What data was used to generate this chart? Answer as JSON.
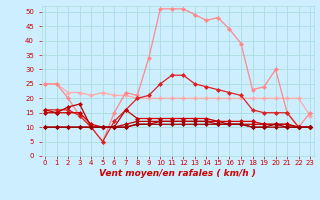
{
  "background_color": "#cceeff",
  "grid_color": "#aadddd",
  "xlabel": "Vent moyen/en rafales ( km/h )",
  "ylim": [
    0,
    52
  ],
  "yticks": [
    0,
    5,
    10,
    15,
    20,
    25,
    30,
    35,
    40,
    45,
    50
  ],
  "xlim": [
    -0.3,
    23.3
  ],
  "series": [
    {
      "color": "#ffaaaa",
      "lw": 0.9,
      "marker": "D",
      "ms": 2.0,
      "values": [
        25,
        25,
        22,
        22,
        21,
        22,
        21,
        21,
        20,
        20,
        20,
        20,
        20,
        20,
        20,
        20,
        20,
        20,
        20,
        20,
        20,
        20,
        20,
        14
      ]
    },
    {
      "color": "#ff8888",
      "lw": 0.9,
      "marker": "D",
      "ms": 2.0,
      "values": [
        25,
        25,
        20,
        14,
        10,
        5,
        15,
        22,
        21,
        34,
        51,
        51,
        51,
        49,
        47,
        48,
        44,
        39,
        23,
        24,
        30,
        15,
        10,
        15
      ]
    },
    {
      "color": "#dd2222",
      "lw": 0.9,
      "marker": "D",
      "ms": 2.0,
      "values": [
        16,
        16,
        16,
        14,
        10,
        5,
        12,
        16,
        20,
        21,
        25,
        28,
        28,
        25,
        24,
        23,
        22,
        21,
        16,
        15,
        15,
        15,
        10,
        10
      ]
    },
    {
      "color": "#cc0000",
      "lw": 0.9,
      "marker": "D",
      "ms": 2.0,
      "values": [
        16,
        15,
        15,
        15,
        11,
        10,
        10,
        16,
        13,
        13,
        13,
        13,
        13,
        13,
        13,
        12,
        12,
        12,
        12,
        11,
        11,
        11,
        10,
        10
      ]
    },
    {
      "color": "#bb0000",
      "lw": 0.9,
      "marker": "D",
      "ms": 2.0,
      "values": [
        15,
        15,
        17,
        18,
        10,
        10,
        10,
        11,
        12,
        12,
        12,
        12,
        12,
        12,
        12,
        12,
        11,
        11,
        11,
        11,
        11,
        11,
        10,
        10
      ]
    },
    {
      "color": "#aa0000",
      "lw": 0.9,
      "marker": "D",
      "ms": 2.0,
      "values": [
        10,
        10,
        10,
        10,
        10,
        10,
        10,
        10,
        11,
        11,
        12,
        12,
        12,
        12,
        12,
        11,
        11,
        11,
        10,
        10,
        11,
        10,
        10,
        10
      ]
    },
    {
      "color": "#990000",
      "lw": 0.9,
      "marker": "D",
      "ms": 2.0,
      "values": [
        10,
        10,
        10,
        10,
        10,
        10,
        10,
        10,
        11,
        11,
        11,
        11,
        11,
        11,
        11,
        11,
        11,
        11,
        10,
        10,
        10,
        10,
        10,
        10
      ]
    }
  ],
  "arrow_color": "#cc0000",
  "tick_color": "#cc0000",
  "label_color": "#cc0000",
  "ylabel_fontsize": 6,
  "xlabel_fontsize": 6.5,
  "tick_fontsize": 5
}
